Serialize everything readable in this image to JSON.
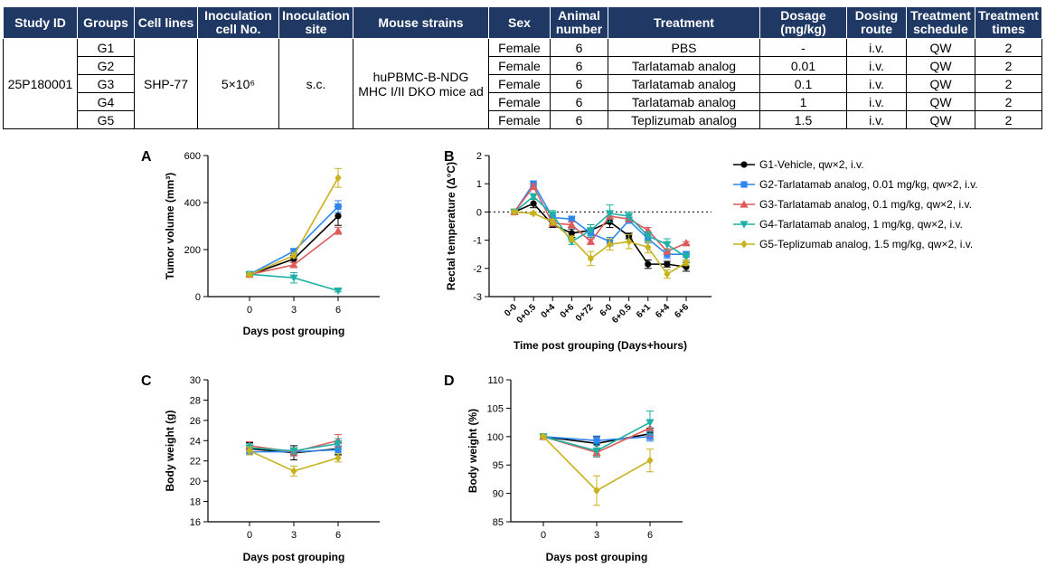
{
  "table": {
    "headers": [
      "Study ID",
      "Groups",
      "Cell lines",
      "Inoculation cell No.",
      "Inoculation site",
      "Mouse strains",
      "Sex",
      "Animal number",
      "Treatment",
      "Dosage (mg/kg)",
      "Dosing route",
      "Treatment schedule",
      "Treatment times"
    ],
    "study_id": "25P180001",
    "cell_line": "SHP-77",
    "cell_no": "5×10⁶",
    "site": "s.c.",
    "strain_line1": "huPBMC-B-NDG",
    "strain_line2": "MHC I/II DKO mice ad",
    "rows": [
      {
        "group": "G1",
        "sex": "Female",
        "number": "6",
        "treatment": "PBS",
        "dosage": "-",
        "route": "i.v.",
        "schedule": "QW",
        "times": "2"
      },
      {
        "group": "G2",
        "sex": "Female",
        "number": "6",
        "treatment": "Tarlatamab analog",
        "dosage": "0.01",
        "route": "i.v.",
        "schedule": "QW",
        "times": "2"
      },
      {
        "group": "G3",
        "sex": "Female",
        "number": "6",
        "treatment": "Tarlatamab analog",
        "dosage": "0.1",
        "route": "i.v.",
        "schedule": "QW",
        "times": "2"
      },
      {
        "group": "G4",
        "sex": "Female",
        "number": "6",
        "treatment": "Tarlatamab analog",
        "dosage": "1",
        "route": "i.v.",
        "schedule": "QW",
        "times": "2"
      },
      {
        "group": "G5",
        "sex": "Female",
        "number": "6",
        "treatment": "Teplizumab analog",
        "dosage": "1.5",
        "route": "i.v.",
        "schedule": "QW",
        "times": "2"
      }
    ]
  },
  "colors": {
    "table_header_bg": "#1f3864",
    "G1": "#000000",
    "G2": "#2e86f0",
    "G3": "#e05a5a",
    "G4": "#1fb0a6",
    "G5": "#c8b21e"
  },
  "legend": [
    {
      "key": "G1",
      "marker": "circle",
      "label": "G1-Vehicle, qw×2, i.v."
    },
    {
      "key": "G2",
      "marker": "square",
      "label": "G2-Tarlatamab analog, 0.01 mg/kg, qw×2, i.v."
    },
    {
      "key": "G3",
      "marker": "triangle-up",
      "label": "G3-Tarlatamab analog, 0.1 mg/kg, qw×2, i.v."
    },
    {
      "key": "G4",
      "marker": "triangle-down",
      "label": "G4-Tarlatamab analog, 1 mg/kg, qw×2, i.v."
    },
    {
      "key": "G5",
      "marker": "diamond",
      "label": "G5-Teplizumab analog, 1.5 mg/kg, qw×2, i.v."
    }
  ],
  "chart_data": [
    {
      "panel": "A",
      "type": "line",
      "xlabel": "Days post grouping",
      "ylabel": "Tumor volume (mm³)",
      "categories": [
        "0",
        "3",
        "6"
      ],
      "ylim": [
        0,
        600
      ],
      "yticks": [
        0,
        200,
        400,
        600
      ],
      "series": [
        {
          "key": "G1",
          "values": [
            93,
            160,
            343
          ],
          "err": [
            6,
            15,
            40
          ]
        },
        {
          "key": "G2",
          "values": [
            95,
            193,
            383
          ],
          "err": [
            6,
            10,
            25
          ]
        },
        {
          "key": "G3",
          "values": [
            94,
            135,
            280
          ],
          "err": [
            5,
            10,
            15
          ]
        },
        {
          "key": "G4",
          "values": [
            95,
            80,
            25
          ],
          "err": [
            5,
            22,
            5
          ]
        },
        {
          "key": "G5",
          "values": [
            93,
            175,
            505
          ],
          "err": [
            6,
            10,
            40
          ]
        }
      ]
    },
    {
      "panel": "B",
      "type": "line",
      "xlabel": "Time post grouping (Days+hours)",
      "ylabel": "Rectal temperature (Δ°C)",
      "categories": [
        "0-0",
        "0+0.5",
        "0+4",
        "0+6",
        "0+72",
        "6-0",
        "6+0.5",
        "6+1",
        "6+4",
        "6+6"
      ],
      "ylim": [
        -3,
        2
      ],
      "yticks": [
        -3,
        -2,
        -1,
        0,
        1,
        2
      ],
      "reference_line": 0,
      "series": [
        {
          "key": "G1",
          "values": [
            0,
            0.3,
            -0.45,
            -0.75,
            -0.65,
            -0.35,
            -0.85,
            -1.85,
            -1.85,
            -1.95
          ],
          "err": [
            0.05,
            0.15,
            0.1,
            0.15,
            0.2,
            0.2,
            0.1,
            0.15,
            0.1,
            0.15
          ]
        },
        {
          "key": "G2",
          "values": [
            0,
            1.0,
            -0.2,
            -0.25,
            -0.75,
            -1.05,
            -0.3,
            -0.95,
            -1.5,
            -1.5
          ],
          "err": [
            0.05,
            0.1,
            0.1,
            0.1,
            0.15,
            0.15,
            0.1,
            0.15,
            0.15,
            0.1
          ]
        },
        {
          "key": "G3",
          "values": [
            0,
            0.9,
            -0.4,
            -0.45,
            -1.05,
            -0.15,
            -0.25,
            -0.65,
            -1.4,
            -1.1
          ],
          "err": [
            0.05,
            0.1,
            0.1,
            0.1,
            0.1,
            0.1,
            0.1,
            0.1,
            0.1,
            0.05
          ]
        },
        {
          "key": "G4",
          "values": [
            0,
            0.55,
            -0.1,
            -1.05,
            -0.65,
            -0.05,
            -0.15,
            -0.85,
            -1.15,
            -1.6
          ],
          "err": [
            0.05,
            0.1,
            0.15,
            0.1,
            0.2,
            0.3,
            0.15,
            0.15,
            0.2,
            0.15
          ]
        },
        {
          "key": "G5",
          "values": [
            0,
            -0.05,
            -0.35,
            -0.95,
            -1.65,
            -1.15,
            -1.05,
            -1.25,
            -2.2,
            -1.8
          ],
          "err": [
            0.05,
            0.05,
            0.1,
            0.1,
            0.25,
            0.2,
            0.25,
            0.2,
            0.15,
            0.1
          ]
        }
      ]
    },
    {
      "panel": "C",
      "type": "line",
      "xlabel": "Days post grouping",
      "ylabel": "Body weight (g)",
      "categories": [
        "0",
        "3",
        "6"
      ],
      "ylim": [
        16,
        30
      ],
      "yticks": [
        16,
        18,
        20,
        22,
        24,
        26,
        28,
        30
      ],
      "series": [
        {
          "key": "G1",
          "values": [
            23.2,
            22.8,
            23.2
          ],
          "err": [
            0.6,
            0.7,
            0.6
          ]
        },
        {
          "key": "G2",
          "values": [
            22.9,
            22.9,
            23.1
          ],
          "err": [
            0.3,
            0.4,
            0.4
          ]
        },
        {
          "key": "G3",
          "values": [
            23.5,
            22.9,
            24.0
          ],
          "err": [
            0.4,
            0.4,
            0.6
          ]
        },
        {
          "key": "G4",
          "values": [
            23.3,
            23.0,
            23.7
          ],
          "err": [
            0.4,
            0.3,
            0.5
          ]
        },
        {
          "key": "G5",
          "values": [
            23.0,
            21.0,
            22.3
          ],
          "err": [
            0.4,
            0.5,
            0.4
          ]
        }
      ]
    },
    {
      "panel": "D",
      "type": "line",
      "xlabel": "Days post grouping",
      "ylabel": "Body weight (%)",
      "categories": [
        "0",
        "3",
        "6"
      ],
      "ylim": [
        85,
        110
      ],
      "yticks": [
        85,
        90,
        95,
        100,
        105,
        110
      ],
      "series": [
        {
          "key": "G1",
          "values": [
            100,
            98.8,
            100.5
          ],
          "err": [
            0.2,
            1.2,
            1.0
          ]
        },
        {
          "key": "G2",
          "values": [
            100,
            99.3,
            100.0
          ],
          "err": [
            0.2,
            0.8,
            0.8
          ]
        },
        {
          "key": "G3",
          "values": [
            100,
            97.2,
            101.5
          ],
          "err": [
            0.2,
            0.8,
            1.5
          ]
        },
        {
          "key": "G4",
          "values": [
            100,
            97.5,
            102.5
          ],
          "err": [
            0.2,
            1.0,
            2.0
          ]
        },
        {
          "key": "G5",
          "values": [
            100,
            90.5,
            95.8
          ],
          "err": [
            0.2,
            2.6,
            2.0
          ]
        }
      ]
    }
  ]
}
